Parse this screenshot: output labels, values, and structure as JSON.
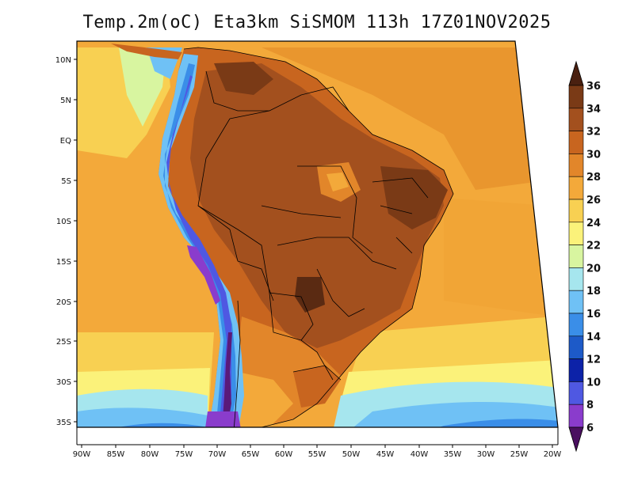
{
  "title": "Temp.2m(oC) Eta3km SiSMOM 113h 17Z01NOV2025",
  "map": {
    "variable": "Temp.2m",
    "unit": "oC",
    "lon_range": [
      -91,
      -19
    ],
    "lat_range": [
      -38,
      12
    ],
    "lon_ticks": [
      "90W",
      "85W",
      "80W",
      "75W",
      "70W",
      "65W",
      "60W",
      "55W",
      "50W",
      "45W",
      "40W",
      "35W",
      "30W",
      "25W",
      "20W"
    ],
    "lat_ticks": [
      "10N",
      "5N",
      "EQ",
      "5S",
      "10S",
      "15S",
      "20S",
      "25S",
      "30S",
      "35S"
    ],
    "regions": {
      "ocean_tropical": "Atlantic/Pacific tropical ocean 26-30",
      "ocean_south": "Southern ocean 14-22",
      "andes": "Andes cordillera 6-20",
      "amazon_brazil": "Interior Brazil 30-36"
    }
  },
  "colorbar": {
    "labels": [
      "36",
      "34",
      "32",
      "30",
      "28",
      "26",
      "24",
      "22",
      "20",
      "18",
      "16",
      "14",
      "12",
      "10",
      "8",
      "6"
    ],
    "colors": [
      "#5a2a12",
      "#7a3a16",
      "#a3501e",
      "#c8651f",
      "#e2862a",
      "#f3a93a",
      "#f8d052",
      "#fbf27a",
      "#d8f5a0",
      "#a6e6ee",
      "#6fc1f5",
      "#3a8ee8",
      "#1d5ac8",
      "#0c22a8",
      "#4f58e2",
      "#8a3ccc",
      "#5a1a7a"
    ],
    "top_color": "#4a2010",
    "bottom_color": "#4a1060"
  }
}
